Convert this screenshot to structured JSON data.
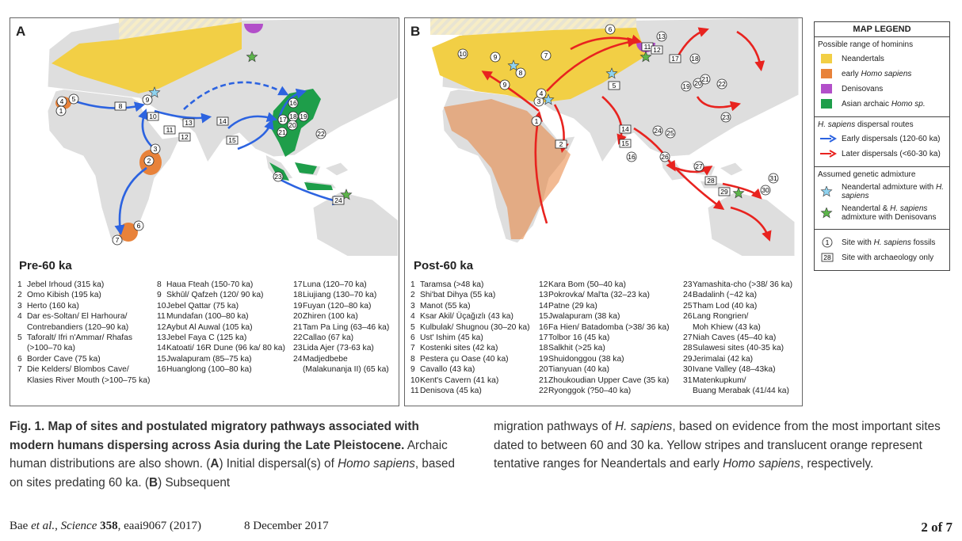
{
  "panel_a": {
    "letter": "A",
    "period": "Pre-60 ka",
    "map_sites": [
      {
        "label": "1",
        "shape": "circle"
      },
      {
        "label": "2",
        "shape": "circle"
      },
      {
        "label": "3",
        "shape": "circle"
      },
      {
        "label": "4",
        "shape": "circle"
      },
      {
        "label": "5",
        "shape": "circle"
      },
      {
        "label": "6",
        "shape": "circle"
      },
      {
        "label": "7",
        "shape": "circle"
      },
      {
        "label": "8",
        "shape": "square"
      },
      {
        "label": "9",
        "shape": "circle"
      },
      {
        "label": "10",
        "shape": "square"
      },
      {
        "label": "11",
        "shape": "square"
      },
      {
        "label": "12",
        "shape": "square"
      },
      {
        "label": "13",
        "shape": "square"
      },
      {
        "label": "14",
        "shape": "square"
      },
      {
        "label": "15",
        "shape": "square"
      },
      {
        "label": "16",
        "shape": "circle"
      },
      {
        "label": "17",
        "shape": "circle"
      },
      {
        "label": "18",
        "shape": "circle"
      },
      {
        "label": "19",
        "shape": "circle"
      },
      {
        "label": "20",
        "shape": "circle"
      },
      {
        "label": "21",
        "shape": "circle"
      },
      {
        "label": "22",
        "shape": "circle"
      },
      {
        "label": "23",
        "shape": "circle"
      },
      {
        "label": "24",
        "shape": "square"
      }
    ],
    "sites": [
      {
        "n": "1",
        "lines": [
          "Jebel Irhoud (315 ka)"
        ]
      },
      {
        "n": "2",
        "lines": [
          "Omo Kibish (195 ka)"
        ]
      },
      {
        "n": "3",
        "lines": [
          "Herto (160 ka)"
        ]
      },
      {
        "n": "4",
        "lines": [
          "Dar es-Soltan/ El Harhoura/",
          "Contrebandiers (120–90 ka)"
        ]
      },
      {
        "n": "5",
        "lines": [
          "Taforalt/ Ifri n'Ammar/ Rhafas",
          "(>100–70 ka)"
        ]
      },
      {
        "n": "6",
        "lines": [
          "Border Cave (75 ka)"
        ]
      },
      {
        "n": "7",
        "lines": [
          "Die Kelders/ Blombos Cave/",
          "Klasies River Mouth (>100–75 ka)"
        ]
      },
      {
        "n": "8",
        "lines": [
          "Haua Fteah (150-70 ka)"
        ]
      },
      {
        "n": "9",
        "lines": [
          "Skhūl/ Qafzeh (120/ 90 ka)"
        ]
      },
      {
        "n": "10",
        "lines": [
          "Jebel Qattar (75 ka)"
        ]
      },
      {
        "n": "11",
        "lines": [
          "Mundafan (100–80 ka)"
        ]
      },
      {
        "n": "12",
        "lines": [
          "Aybut Al Auwal (105 ka)"
        ]
      },
      {
        "n": "13",
        "lines": [
          "Jebel Faya C (125 ka)"
        ]
      },
      {
        "n": "14",
        "lines": [
          "Katoati/ 16R Dune (96 ka/ 80 ka)"
        ]
      },
      {
        "n": "15",
        "lines": [
          "Jwalapuram (85–75 ka)"
        ]
      },
      {
        "n": "16",
        "lines": [
          "Huanglong (100–80 ka)"
        ]
      },
      {
        "n": "17",
        "lines": [
          "Luna (120–70 ka)"
        ]
      },
      {
        "n": "18",
        "lines": [
          "Liujiang (130–70 ka)"
        ]
      },
      {
        "n": "19",
        "lines": [
          "Fuyan (120–80 ka)"
        ]
      },
      {
        "n": "20",
        "lines": [
          "Zhiren (100 ka)"
        ]
      },
      {
        "n": "21",
        "lines": [
          "Tam Pa Ling (63–46 ka)"
        ]
      },
      {
        "n": "22",
        "lines": [
          "Callao (67 ka)"
        ]
      },
      {
        "n": "23",
        "lines": [
          "Lida Ajer (73-63 ka)"
        ]
      },
      {
        "n": "24",
        "lines": [
          "Madjedbebe",
          "(Malakunanja II) (65 ka)"
        ]
      }
    ]
  },
  "panel_b": {
    "letter": "B",
    "period": "Post-60 ka",
    "map_sites": [
      {
        "label": "1",
        "shape": "circle"
      },
      {
        "label": "2",
        "shape": "square"
      },
      {
        "label": "3",
        "shape": "circle"
      },
      {
        "label": "4",
        "shape": "circle"
      },
      {
        "label": "5",
        "shape": "square"
      },
      {
        "label": "6",
        "shape": "circle"
      },
      {
        "label": "7",
        "shape": "circle"
      },
      {
        "label": "8",
        "shape": "circle"
      },
      {
        "label": "9",
        "shape": "circle"
      },
      {
        "label": "9",
        "shape": "circle"
      },
      {
        "label": "10",
        "shape": "circle"
      },
      {
        "label": "11",
        "shape": "square"
      },
      {
        "label": "12",
        "shape": "square"
      },
      {
        "label": "13",
        "shape": "circle"
      },
      {
        "label": "14",
        "shape": "square"
      },
      {
        "label": "15",
        "shape": "square"
      },
      {
        "label": "16",
        "shape": "circle"
      },
      {
        "label": "17",
        "shape": "square"
      },
      {
        "label": "18",
        "shape": "circle"
      },
      {
        "label": "19",
        "shape": "circle"
      },
      {
        "label": "20",
        "shape": "circle"
      },
      {
        "label": "21",
        "shape": "circle"
      },
      {
        "label": "22",
        "shape": "circle"
      },
      {
        "label": "23",
        "shape": "circle"
      },
      {
        "label": "24",
        "shape": "circle"
      },
      {
        "label": "25",
        "shape": "circle"
      },
      {
        "label": "26",
        "shape": "circle"
      },
      {
        "label": "27",
        "shape": "circle"
      },
      {
        "label": "28",
        "shape": "square"
      },
      {
        "label": "29",
        "shape": "square"
      },
      {
        "label": "30",
        "shape": "circle"
      },
      {
        "label": "31",
        "shape": "circle"
      }
    ],
    "sites": [
      {
        "n": "1",
        "lines": [
          "Taramsa (>48 ka)"
        ]
      },
      {
        "n": "2",
        "lines": [
          "Shi'bat Dihya (55 ka)"
        ]
      },
      {
        "n": "3",
        "lines": [
          "Manot (55 ka)"
        ]
      },
      {
        "n": "4",
        "lines": [
          "Ksar Akil/ Üçağızlı (43 ka)"
        ]
      },
      {
        "n": "5",
        "lines": [
          "Kulbulak/ Shugnou (30–20 ka)"
        ]
      },
      {
        "n": "6",
        "lines": [
          "Ust' Ishim (45 ka)"
        ]
      },
      {
        "n": "7",
        "lines": [
          "Kostenki sites (42 ka)"
        ]
      },
      {
        "n": "8",
        "lines": [
          "Pestera çu Oase (40 ka)"
        ]
      },
      {
        "n": "9",
        "lines": [
          "Cavallo (43 ka)"
        ]
      },
      {
        "n": "10",
        "lines": [
          "Kent's Cavern (41 ka)"
        ]
      },
      {
        "n": "11",
        "lines": [
          "Denisova (45 ka)"
        ]
      },
      {
        "n": "12",
        "lines": [
          "Kara Bom (50–40 ka)"
        ]
      },
      {
        "n": "13",
        "lines": [
          "Pokrovka/ Mal'ta (32–23 ka)"
        ]
      },
      {
        "n": "14",
        "lines": [
          "Patne (29 ka)"
        ]
      },
      {
        "n": "15",
        "lines": [
          "Jwalapuram (38 ka)"
        ]
      },
      {
        "n": "16",
        "lines": [
          "Fa Hien/ Batadomba (>38/ 36 ka)"
        ]
      },
      {
        "n": "17",
        "lines": [
          "Tolbor 16 (45 ka)"
        ]
      },
      {
        "n": "18",
        "lines": [
          "Salkhit (>25 ka)"
        ]
      },
      {
        "n": "19",
        "lines": [
          "Shuidonggou (38 ka)"
        ]
      },
      {
        "n": "20",
        "lines": [
          "Tianyuan (40 ka)"
        ]
      },
      {
        "n": "21",
        "lines": [
          "Zhoukoudian Upper Cave (35 ka)"
        ]
      },
      {
        "n": "22",
        "lines": [
          "Ryonggok (?50–40 ka)"
        ]
      },
      {
        "n": "23",
        "lines": [
          "Yamashita-cho (>38/ 36 ka)"
        ]
      },
      {
        "n": "24",
        "lines": [
          "Badalinh (~42 ka)"
        ]
      },
      {
        "n": "25",
        "lines": [
          "Tham Lod (40 ka)"
        ]
      },
      {
        "n": "26",
        "lines": [
          "Lang Rongrien/",
          "Moh Khiew (43 ka)"
        ]
      },
      {
        "n": "27",
        "lines": [
          "Niah Caves (45–40 ka)"
        ]
      },
      {
        "n": "28",
        "lines": [
          "Sulawesi sites (40-35 ka)"
        ]
      },
      {
        "n": "29",
        "lines": [
          "Jerimalai (42 ka)"
        ]
      },
      {
        "n": "30",
        "lines": [
          "Ivane Valley (48–43ka)"
        ]
      },
      {
        "n": "31",
        "lines": [
          "Matenkupkum/",
          "Buang Merabak (41/44 ka)"
        ]
      }
    ]
  },
  "legend": {
    "title": "MAP LEGEND",
    "ranges": {
      "heading": [
        {
          "text": "Possible range of hominins",
          "style": "normal"
        }
      ],
      "items": [
        {
          "color": "#f2cf45",
          "label": [
            {
              "text": "Neandertals",
              "style": "normal"
            }
          ]
        },
        {
          "color": "#e8823a",
          "label": [
            {
              "text": "early ",
              "style": "normal"
            },
            {
              "text": "Homo sapiens",
              "style": "italic"
            }
          ]
        },
        {
          "color": "#b24fc9",
          "label": [
            {
              "text": "Denisovans",
              "style": "normal"
            }
          ]
        },
        {
          "color": "#1e9e4a",
          "label": [
            {
              "text": "Asian archaic ",
              "style": "normal"
            },
            {
              "text": "Homo sp.",
              "style": "italic"
            }
          ]
        }
      ]
    },
    "routes": {
      "heading": [
        {
          "text": "H. sapiens",
          "style": "italic"
        },
        {
          "text": " dispersal routes",
          "style": "normal"
        }
      ],
      "items": [
        {
          "color": "#2c63e0",
          "label": [
            {
              "text": "Early dispersals (120-60 ka)",
              "style": "normal"
            }
          ]
        },
        {
          "color": "#e8231f",
          "label": [
            {
              "text": "Later dispersals (<60-30 ka)",
              "style": "normal"
            }
          ]
        }
      ]
    },
    "admixture": {
      "heading": [
        {
          "text": "Assumed genetic admixture",
          "style": "normal"
        }
      ],
      "items": [
        {
          "color": "#8fd3f0",
          "label": [
            {
              "text": "Neandertal admixture with ",
              "style": "normal"
            },
            {
              "text": "H. sapiens",
              "style": "italic"
            }
          ]
        },
        {
          "color": "#5cb54a",
          "label": [
            {
              "text": "Neandertal & ",
              "style": "normal"
            },
            {
              "text": "H. sapiens",
              "style": "italic"
            },
            {
              "text": " admixture with Denisovans",
              "style": "normal"
            }
          ]
        }
      ]
    },
    "symbols": [
      {
        "symbol": "1",
        "shape": "circle",
        "label": [
          {
            "text": "Site with ",
            "style": "normal"
          },
          {
            "text": "H. sapiens",
            "style": "italic"
          },
          {
            "text": " fossils",
            "style": "normal"
          }
        ]
      },
      {
        "symbol": "28",
        "shape": "square",
        "label": [
          {
            "text": "Site with archaeology only",
            "style": "normal"
          }
        ]
      }
    ]
  },
  "caption": {
    "left": [
      {
        "text": "Fig. 1. Map of sites and postulated migratory pathways associated with modern humans dispersing across Asia during the Late Pleistocene.",
        "style": "bold"
      },
      {
        "text": " Archaic human distributions are also shown. (",
        "style": "normal"
      },
      {
        "text": "A",
        "style": "bold"
      },
      {
        "text": ") Initial dispersal(s) of ",
        "style": "normal"
      },
      {
        "text": "Homo sapiens",
        "style": "italic"
      },
      {
        "text": ", based on sites predating 60 ka. (",
        "style": "normal"
      },
      {
        "text": "B",
        "style": "bold"
      },
      {
        "text": ") Subsequent",
        "style": "normal"
      }
    ],
    "right": [
      {
        "text": "migration pathways of ",
        "style": "normal"
      },
      {
        "text": "H. sapiens",
        "style": "italic"
      },
      {
        "text": ", based on evidence from the most important sites dated to between 60 and 30 ka. Yellow stripes and translucent orange represent tentative ranges for Neandertals and early ",
        "style": "normal"
      },
      {
        "text": "Homo sapiens",
        "style": "italic"
      },
      {
        "text": ", respectively.",
        "style": "normal"
      }
    ]
  },
  "footer": {
    "citation": [
      {
        "text": "Bae ",
        "style": "normal"
      },
      {
        "text": "et al.",
        "style": "italic"
      },
      {
        "text": ", ",
        "style": "normal"
      },
      {
        "text": "Science",
        "style": "italic"
      },
      {
        "text": " ",
        "style": "normal"
      },
      {
        "text": "358",
        "style": "bold"
      },
      {
        "text": ", eaai9067 (2017)",
        "style": "normal"
      }
    ],
    "date": "8 December 2017",
    "page": "2 of 7"
  }
}
